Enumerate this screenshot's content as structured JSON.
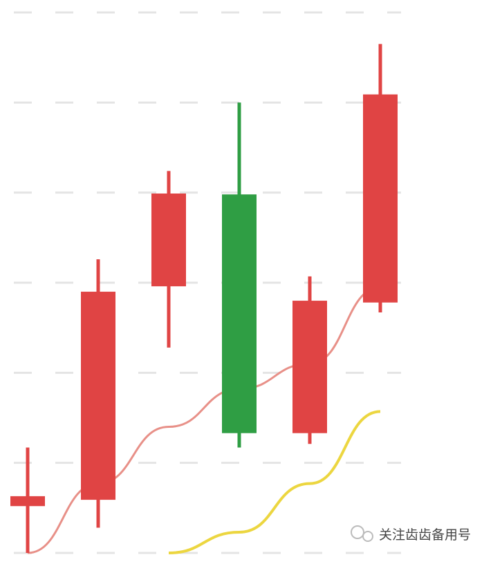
{
  "chart_data": {
    "type": "candlestick",
    "candles": [
      {
        "open": 0.52,
        "high": 1.17,
        "low": 0,
        "close": 0.63
      },
      {
        "open": 0.59,
        "high": 3.26,
        "low": 0.28,
        "close": 2.9
      },
      {
        "open": 2.96,
        "high": 4.24,
        "low": 2.28,
        "close": 3.99
      },
      {
        "open": 3.98,
        "high": 5.0,
        "low": 1.17,
        "close": 1.33
      },
      {
        "open": 1.33,
        "high": 3.07,
        "low": 1.21,
        "close": 2.8
      },
      {
        "open": 2.78,
        "high": 5.65,
        "low": 2.67,
        "close": 5.09
      }
    ],
    "up_color": "#e04444",
    "down_color": "#2f9e44",
    "lines": [
      {
        "color": "#e89088",
        "values": [
          0,
          0.77,
          1.4,
          1.82,
          2.1,
          2.95
        ]
      },
      {
        "color": "#ecd640",
        "values": [
          null,
          null,
          0,
          0.23,
          0.77,
          1.57
        ]
      }
    ],
    "ylim": [
      0,
      6
    ],
    "yticks": [
      0,
      1,
      2,
      3,
      4,
      5,
      6
    ],
    "grid": true,
    "watermark": "关注齿齿备用号"
  }
}
